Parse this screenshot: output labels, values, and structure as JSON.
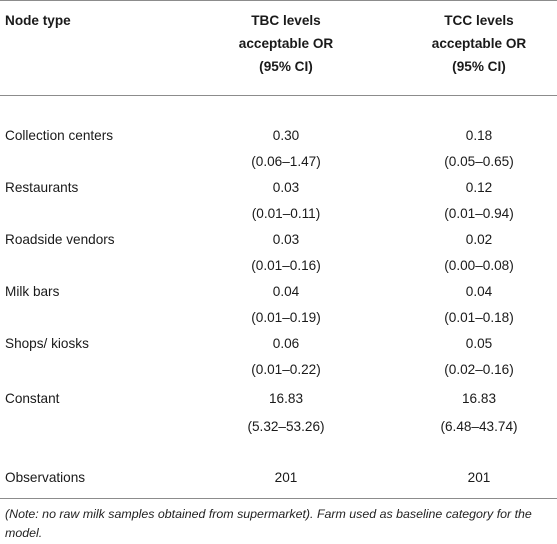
{
  "headers": {
    "col1": "Node type",
    "col2": [
      "TBC levels",
      "acceptable OR",
      "(95% CI)"
    ],
    "col3": [
      "TCC levels",
      "acceptable OR",
      "(95% CI)"
    ]
  },
  "rows": [
    {
      "label": "Collection centers",
      "tbc_or": "0.30",
      "tbc_ci": "(0.06–1.47)",
      "tcc_or": "0.18",
      "tcc_ci": "(0.05–0.65)"
    },
    {
      "label": "Restaurants",
      "tbc_or": "0.03",
      "tbc_ci": "(0.01–0.11)",
      "tcc_or": "0.12",
      "tcc_ci": "(0.01–0.94)"
    },
    {
      "label": "Roadside vendors",
      "tbc_or": "0.03",
      "tbc_ci": "(0.01–0.16)",
      "tcc_or": "0.02",
      "tcc_ci": "(0.00–0.08)"
    },
    {
      "label": "Milk bars",
      "tbc_or": "0.04",
      "tbc_ci": "(0.01–0.19)",
      "tcc_or": "0.04",
      "tcc_ci": "(0.01–0.18)"
    },
    {
      "label": "Shops/ kiosks",
      "tbc_or": "0.06",
      "tbc_ci": "(0.01–0.22)",
      "tcc_or": "0.05",
      "tcc_ci": "(0.02–0.16)"
    },
    {
      "label": "Constant",
      "tbc_or": "16.83",
      "tbc_ci": "(5.32–53.26)",
      "tcc_or": "16.83",
      "tcc_ci": "(6.48–43.74)"
    }
  ],
  "observations": {
    "label": "Observations",
    "tbc": "201",
    "tcc": "201"
  },
  "note": "(Note: no raw milk samples obtained from supermarket). Farm used as baseline category for the model."
}
